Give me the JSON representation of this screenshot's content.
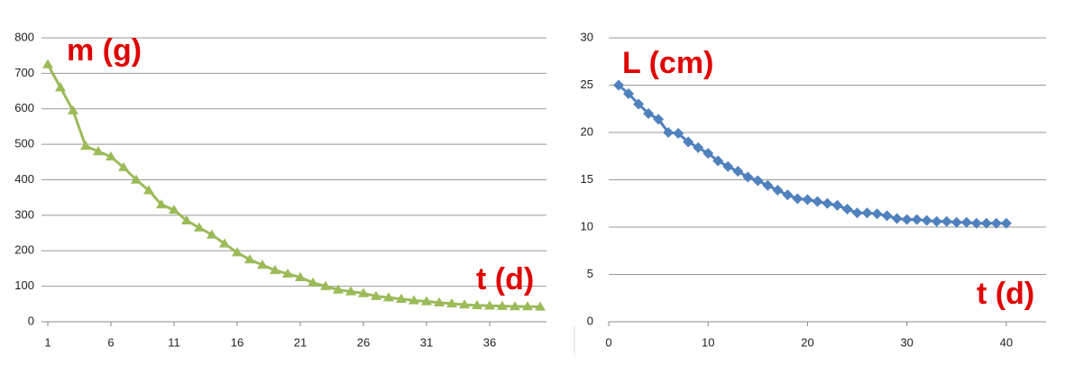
{
  "chart_data": [
    {
      "type": "line",
      "annotations": [
        "m (g)",
        "t (d)"
      ],
      "categories": [
        1,
        null,
        null,
        null,
        null,
        6,
        null,
        null,
        null,
        null,
        11,
        null,
        null,
        null,
        null,
        16,
        null,
        null,
        null,
        null,
        21,
        null,
        null,
        null,
        null,
        26,
        null,
        null,
        null,
        null,
        31,
        null,
        null,
        null,
        null,
        36,
        null,
        null,
        null,
        null
      ],
      "series": [
        {
          "color": "#9bbb59",
          "marker": "triangle",
          "values": [
            725,
            660,
            595,
            495,
            480,
            465,
            435,
            400,
            370,
            330,
            315,
            285,
            265,
            245,
            220,
            195,
            175,
            160,
            145,
            135,
            125,
            110,
            100,
            90,
            85,
            80,
            72,
            68,
            64,
            60,
            57,
            54,
            51,
            48,
            46,
            45,
            44,
            43,
            43,
            42
          ]
        }
      ],
      "ylim": [
        0,
        800
      ],
      "yticks": [
        0,
        100,
        200,
        300,
        400,
        500,
        600,
        700,
        800
      ],
      "grid": true
    },
    {
      "type": "line",
      "annotations": [
        "L (cm)",
        "t (d)"
      ],
      "x": [
        1,
        2,
        3,
        4,
        5,
        6,
        7,
        8,
        9,
        10,
        11,
        12,
        13,
        14,
        15,
        16,
        17,
        18,
        19,
        20,
        21,
        22,
        23,
        24,
        25,
        26,
        27,
        28,
        29,
        30,
        31,
        32,
        33,
        34,
        35,
        36,
        37,
        38,
        39,
        40
      ],
      "series": [
        {
          "color": "#4f81bd",
          "marker": "diamond",
          "values": [
            25,
            24.1,
            23,
            22,
            21.4,
            20,
            19.9,
            19,
            18.4,
            17.8,
            17,
            16.4,
            15.9,
            15.3,
            14.9,
            14.4,
            13.9,
            13.4,
            13,
            12.9,
            12.7,
            12.5,
            12.3,
            11.9,
            11.5,
            11.5,
            11.4,
            11.2,
            10.9,
            10.8,
            10.8,
            10.7,
            10.6,
            10.6,
            10.5,
            10.5,
            10.4,
            10.4,
            10.4,
            10.4
          ]
        }
      ],
      "xlim": [
        0,
        44
      ],
      "xticks": [
        0,
        10,
        20,
        30,
        40
      ],
      "ylim": [
        0,
        30
      ],
      "yticks": [
        0,
        5,
        10,
        15,
        20,
        25,
        30
      ],
      "grid": true
    }
  ]
}
